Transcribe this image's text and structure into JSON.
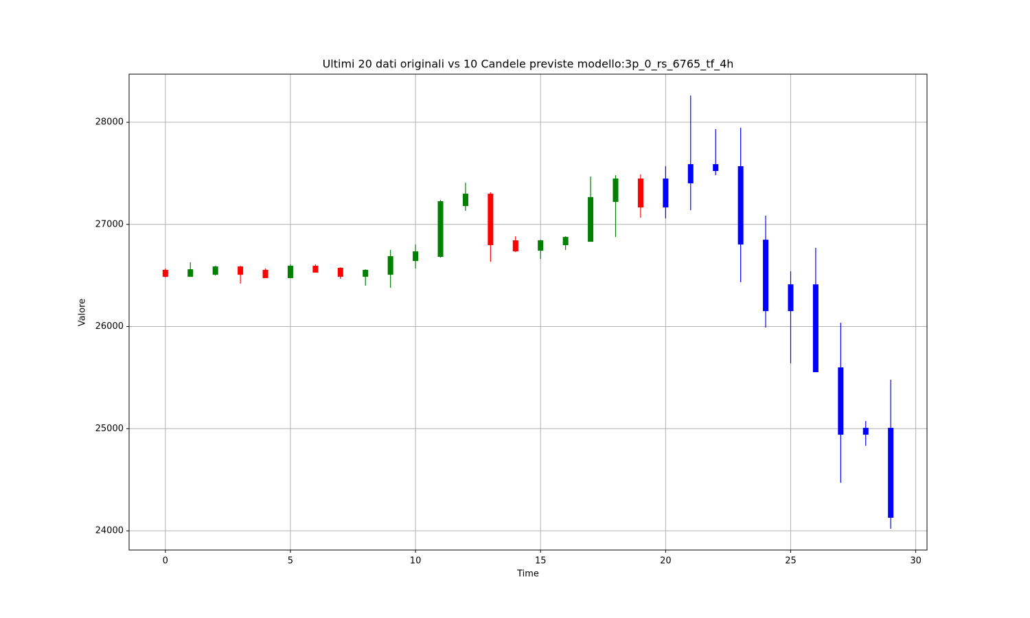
{
  "chart_data": {
    "type": "candlestick",
    "title": "Ultimi 20 dati originali vs 10 Candele previste modello:3p_0_rs_6765_tf_4h",
    "xlabel": "Time",
    "ylabel": "Valore",
    "x": [
      0,
      1,
      2,
      3,
      4,
      5,
      6,
      7,
      8,
      9,
      10,
      11,
      12,
      13,
      14,
      15,
      16,
      17,
      18,
      19,
      20,
      21,
      22,
      23,
      24,
      25,
      26,
      27,
      28,
      29
    ],
    "open": [
      26555,
      26487,
      26507,
      26588,
      26555,
      26474,
      26595,
      26575,
      26487,
      26507,
      26642,
      26682,
      27180,
      27301,
      26844,
      26743,
      26797,
      26830,
      27220,
      27449,
      27166,
      27402,
      27590,
      27570,
      26850,
      26151,
      26413,
      25600,
      25008,
      25008
    ],
    "high": [
      26568,
      26629,
      26595,
      26595,
      26568,
      26608,
      26608,
      26580,
      26560,
      26750,
      26803,
      27240,
      27408,
      27314,
      26884,
      26850,
      26884,
      27469,
      27482,
      27489,
      27570,
      28262,
      27933,
      27946,
      27086,
      26541,
      26770,
      26037,
      25075,
      25479
    ],
    "low": [
      26481,
      26487,
      26500,
      26420,
      26474,
      26474,
      26528,
      26467,
      26400,
      26380,
      26568,
      26675,
      27133,
      26635,
      26729,
      26662,
      26750,
      26830,
      26877,
      27066,
      27059,
      27139,
      27482,
      26434,
      25990,
      25640,
      25553,
      24470,
      24833,
      24020
    ],
    "close": [
      26487,
      26561,
      26588,
      26507,
      26474,
      26595,
      26528,
      26487,
      26555,
      26689,
      26736,
      27227,
      27301,
      26797,
      26736,
      26844,
      26877,
      27267,
      27449,
      27166,
      27449,
      27590,
      27523,
      26803,
      26151,
      26413,
      25553,
      24941,
      24941,
      24128
    ],
    "colors": [
      "red",
      "green",
      "green",
      "red",
      "red",
      "green",
      "red",
      "red",
      "green",
      "green",
      "green",
      "green",
      "green",
      "red",
      "red",
      "green",
      "green",
      "green",
      "green",
      "red",
      "blue",
      "blue",
      "blue",
      "blue",
      "blue",
      "blue",
      "blue",
      "blue",
      "blue",
      "blue"
    ],
    "xlim": [
      -1.45,
      30.45
    ],
    "ylim": [
      23812,
      28471
    ],
    "xticks": [
      0,
      5,
      10,
      15,
      20,
      25,
      30
    ],
    "yticks": [
      24000,
      25000,
      26000,
      27000,
      28000
    ],
    "grid": true
  }
}
